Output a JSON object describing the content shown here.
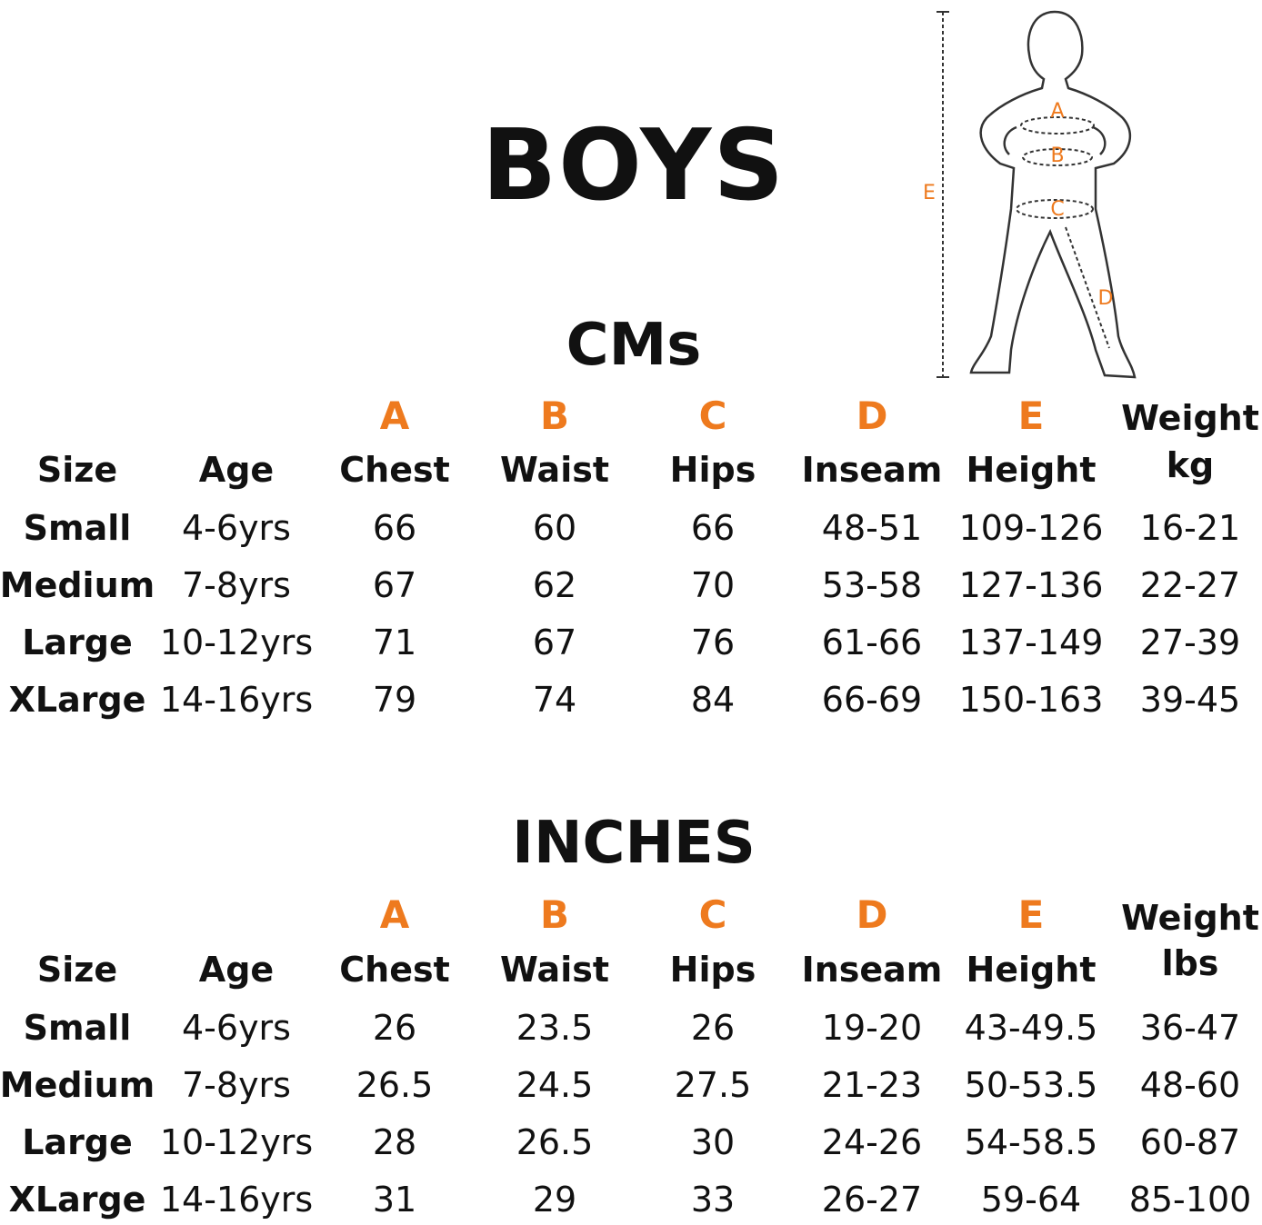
{
  "title": "BOYS",
  "figure": {
    "labels": [
      "A",
      "B",
      "C",
      "D",
      "E"
    ]
  },
  "tables": [
    {
      "title": "CMs",
      "letters": [
        "A",
        "B",
        "C",
        "D",
        "E"
      ],
      "headers": [
        "Size",
        "Age",
        "Chest",
        "Waist",
        "Hips",
        "Inseam",
        "Height"
      ],
      "weight_header": [
        "Weight",
        "kg"
      ],
      "rows": [
        [
          "Small",
          "4-6yrs",
          "66",
          "60",
          "66",
          "48-51",
          "109-126",
          "16-21"
        ],
        [
          "Medium",
          "7-8yrs",
          "67",
          "62",
          "70",
          "53-58",
          "127-136",
          "22-27"
        ],
        [
          "Large",
          "10-12yrs",
          "71",
          "67",
          "76",
          "61-66",
          "137-149",
          "27-39"
        ],
        [
          "XLarge",
          "14-16yrs",
          "79",
          "74",
          "84",
          "66-69",
          "150-163",
          "39-45"
        ]
      ]
    },
    {
      "title": "INCHES",
      "letters": [
        "A",
        "B",
        "C",
        "D",
        "E"
      ],
      "headers": [
        "Size",
        "Age",
        "Chest",
        "Waist",
        "Hips",
        "Inseam",
        "Height"
      ],
      "weight_header": [
        "Weight",
        "lbs"
      ],
      "rows": [
        [
          "Small",
          "4-6yrs",
          "26",
          "23.5",
          "26",
          "19-20",
          "43-49.5",
          "36-47"
        ],
        [
          "Medium",
          "7-8yrs",
          "26.5",
          "24.5",
          "27.5",
          "21-23",
          "50-53.5",
          "48-60"
        ],
        [
          "Large",
          "10-12yrs",
          "28",
          "26.5",
          "30",
          "24-26",
          "54-58.5",
          "60-87"
        ],
        [
          "XLarge",
          "14-16yrs",
          "31",
          "29",
          "33",
          "26-27",
          "59-64",
          "85-100"
        ]
      ]
    }
  ]
}
